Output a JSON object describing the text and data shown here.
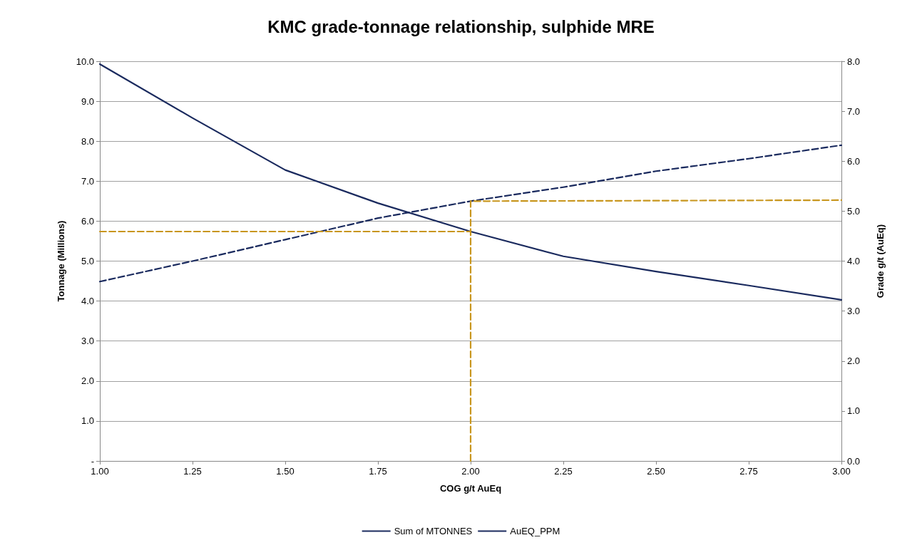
{
  "chart_data": {
    "type": "line",
    "title": "KMC grade-tonnage relationship, sulphide MRE",
    "xlabel": "COG g/t AuEq",
    "ylabel": "Tonnage (Millions)",
    "y2label": "Grade g/t (AuEq)",
    "x": [
      1.0,
      1.25,
      1.5,
      1.75,
      2.0,
      2.25,
      2.5,
      2.75,
      3.0
    ],
    "series": [
      {
        "name": "Sum of MTONNES",
        "color": "#1a2a5e",
        "line_style": "solid",
        "values": [
          9.93,
          8.58,
          7.28,
          6.45,
          5.74,
          5.12,
          4.74,
          4.39,
          4.03
        ]
      },
      {
        "name": "AuEQ_PPM",
        "color": "#1a2a5e",
        "line_style": "dashed",
        "axis": "y2",
        "values": [
          3.59,
          4.0,
          4.43,
          4.86,
          5.2,
          5.48,
          5.8,
          6.05,
          6.32
        ]
      },
      {
        "color": "#c8961e",
        "line_style": "dashed",
        "x": [
          1.0,
          2.0
        ],
        "values": [
          5.74,
          5.74
        ]
      },
      {
        "color": "#c8961e",
        "line_style": "dashed",
        "axis": "y2",
        "x": [
          2.0,
          2.0,
          3.0
        ],
        "values": [
          0,
          5.2,
          5.22
        ]
      }
    ],
    "xlim": [
      1,
      3
    ],
    "xticks": [
      {
        "value": 1,
        "label": "1.00"
      },
      {
        "value": 1.25,
        "label": "1.25"
      },
      {
        "value": 1.5,
        "label": "1.50"
      },
      {
        "value": 1.75,
        "label": "1.75"
      },
      {
        "value": 2,
        "label": "2.00"
      },
      {
        "value": 2.25,
        "label": "2.25"
      },
      {
        "value": 2.5,
        "label": "2.50"
      },
      {
        "value": 2.75,
        "label": "2.75"
      },
      {
        "value": 3,
        "label": "3.00"
      }
    ],
    "ylim": [
      0,
      10
    ],
    "yticks": [
      {
        "value": 0,
        "label": "-"
      },
      {
        "value": 1,
        "label": "1.0"
      },
      {
        "value": 2,
        "label": "2.0"
      },
      {
        "value": 3,
        "label": "3.0"
      },
      {
        "value": 4,
        "label": "4.0"
      },
      {
        "value": 5,
        "label": "5.0"
      },
      {
        "value": 6,
        "label": "6.0"
      },
      {
        "value": 7,
        "label": "7.0"
      },
      {
        "value": 8,
        "label": "8.0"
      },
      {
        "value": 9,
        "label": "9.0"
      },
      {
        "value": 10,
        "label": "10.0"
      }
    ],
    "y2lim": [
      0,
      8
    ],
    "y2ticks": [
      {
        "value": 0,
        "label": "0.0"
      },
      {
        "value": 1,
        "label": "1.0"
      },
      {
        "value": 2,
        "label": "2.0"
      },
      {
        "value": 3,
        "label": "3.0"
      },
      {
        "value": 4,
        "label": "4.0"
      },
      {
        "value": 5,
        "label": "5.0"
      },
      {
        "value": 6,
        "label": "6.0"
      },
      {
        "value": 7,
        "label": "7.0"
      },
      {
        "value": 8,
        "label": "8.0"
      }
    ],
    "grid": "y",
    "legend": "bottom",
    "marker": "none"
  }
}
